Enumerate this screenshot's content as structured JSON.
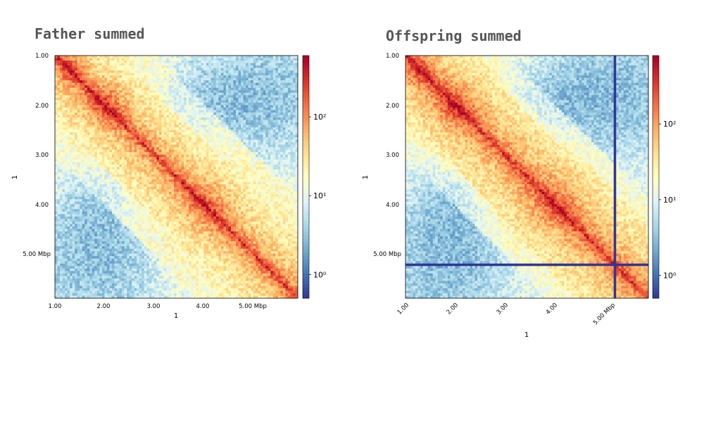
{
  "chart_data": [
    {
      "type": "heatmap",
      "title": "Father summed",
      "xlabel": "1",
      "ylabel": "1",
      "x_tick_labels": [
        "1.00",
        "2.00",
        "3.00",
        "4.00",
        "5.00  Mbp"
      ],
      "y_tick_labels": [
        "1.00",
        "2.00",
        "3.00",
        "4.00",
        "5.00  Mbp"
      ],
      "x_ticks_rotated": false,
      "axis_range_mbp": [
        1.0,
        5.9
      ],
      "colorbar": {
        "scale": "log",
        "range": [
          0.5,
          600
        ],
        "tick_labels": [
          "10⁰",
          "10¹",
          "10²"
        ],
        "tick_values": [
          1,
          10,
          100
        ],
        "colormap": "RdYlBu_r"
      },
      "masked_bins_mbp": []
    },
    {
      "type": "heatmap",
      "title": "Offspring summed",
      "xlabel": "1",
      "ylabel": "1",
      "x_tick_labels": [
        "1.00",
        "2.00",
        "3.00",
        "4.00",
        "5.00  Mbp"
      ],
      "y_tick_labels": [
        "1.00",
        "2.00",
        "3.00",
        "4.00",
        "5.00  Mbp"
      ],
      "x_ticks_rotated": true,
      "axis_range_mbp": [
        1.0,
        5.9
      ],
      "colorbar": {
        "scale": "log",
        "range": [
          0.5,
          800
        ],
        "tick_labels": [
          "10⁰",
          "10¹",
          "10²"
        ],
        "tick_values": [
          1,
          10,
          100
        ],
        "colormap": "RdYlBu_r"
      },
      "masked_bins_mbp": [
        5.2
      ]
    }
  ]
}
